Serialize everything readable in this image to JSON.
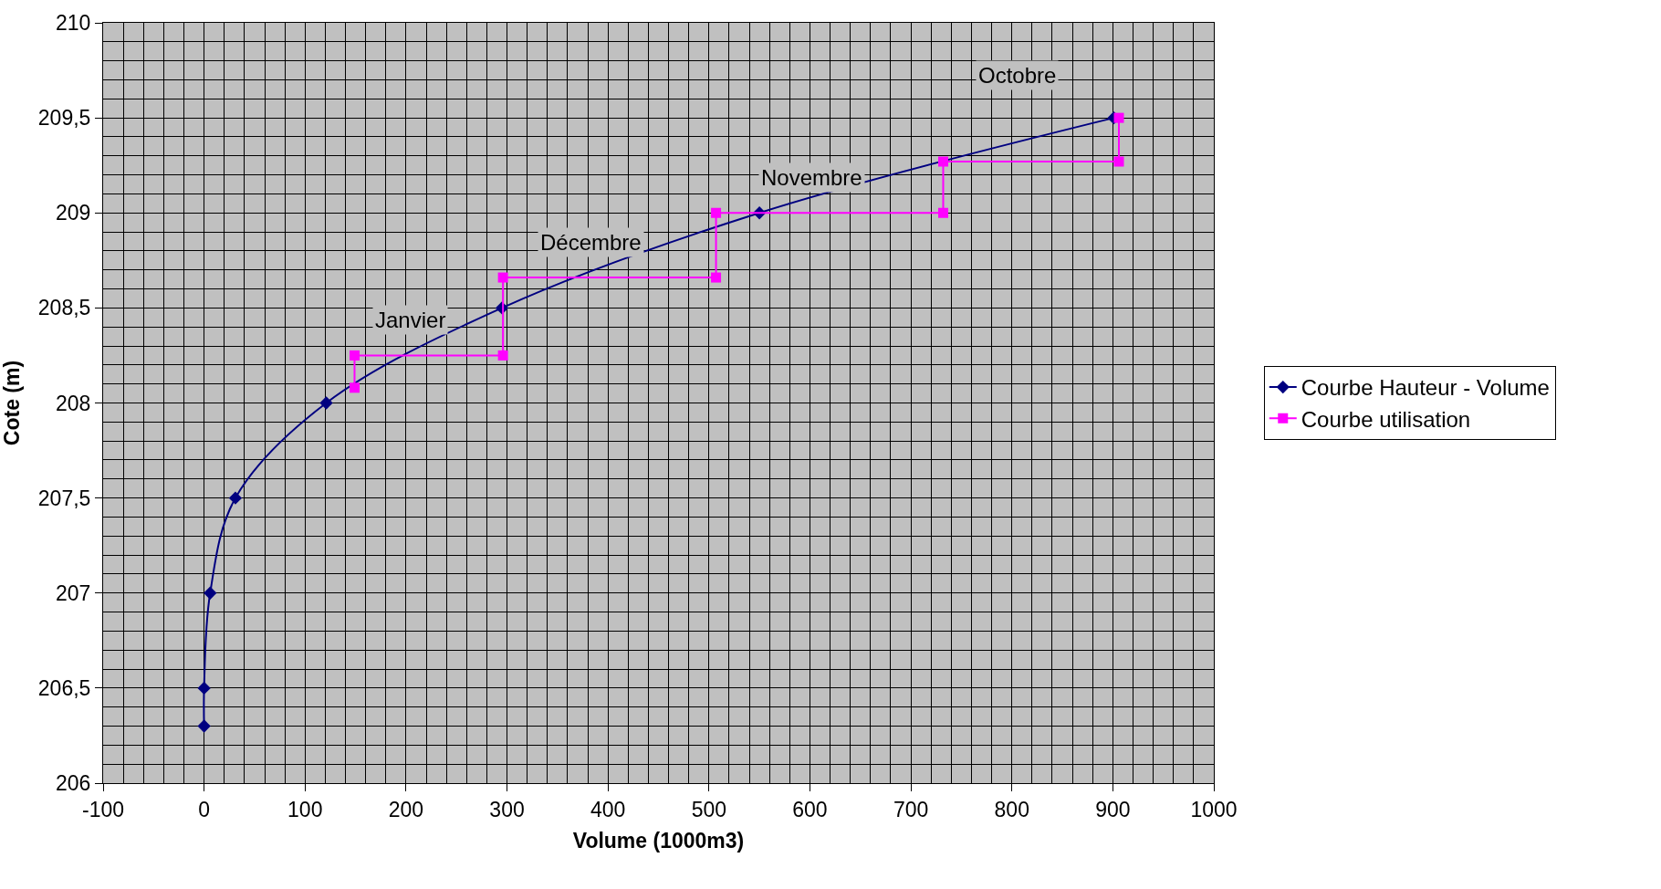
{
  "chart_data": {
    "type": "line",
    "xlabel": "Volume (1000m3)",
    "ylabel": "Cote (m)",
    "xlim": [
      -100,
      1000
    ],
    "xticks": [
      -100,
      0,
      100,
      200,
      300,
      400,
      500,
      600,
      700,
      800,
      900,
      1000
    ],
    "ylim": [
      206,
      210
    ],
    "yticks": [
      206,
      {
        "value": 206.5,
        "label": "206,5"
      },
      207,
      {
        "value": 207.5,
        "label": "207,5"
      },
      208,
      {
        "value": 208.5,
        "label": "208,5"
      },
      209,
      {
        "value": 209.5,
        "label": "209,5"
      },
      210
    ],
    "grid": true,
    "legend": "right",
    "series": [
      {
        "name": "Courbe Hauteur - Volume",
        "color": "#000080",
        "marker": "diamond",
        "x": [
          0,
          0,
          6,
          31,
          121,
          295,
          550,
          901
        ],
        "values": [
          206.3,
          206.5,
          207,
          207.5,
          208,
          208.5,
          209,
          209.5
        ]
      },
      {
        "name": "Courbe utilisation",
        "color": "#ff00ff",
        "marker": "square",
        "type": "step",
        "x": [
          149,
          149,
          296,
          296,
          507,
          507,
          732,
          732,
          906,
          906
        ],
        "values": [
          208.08,
          208.25,
          208.25,
          208.66,
          208.66,
          209,
          209,
          209.27,
          209.27,
          209.5
        ]
      }
    ],
    "annotations": [
      "Octobre",
      "Novembre",
      "Décembre",
      "Janvier"
    ]
  }
}
